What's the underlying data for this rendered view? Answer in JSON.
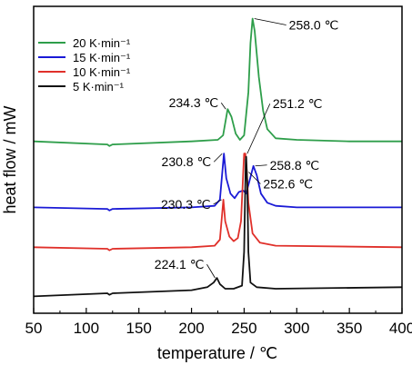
{
  "chart_data": {
    "type": "line",
    "xlabel": "temperature / ℃",
    "ylabel": "heat flow / mW",
    "xlim": [
      50,
      400
    ],
    "x_ticks": [
      "50",
      "100",
      "150",
      "200",
      "250",
      "300",
      "350",
      "400"
    ],
    "y_ticks_shown": false,
    "legend": {
      "placement": "top-left",
      "entries": [
        "20 K·min⁻¹",
        "15 K·min⁻¹",
        "10 K·min⁻¹",
        "5 K·min⁻¹"
      ]
    },
    "series": [
      {
        "name": "20 K·min⁻¹",
        "color": "#2e9e4a",
        "baseline": 0.56,
        "points": [
          [
            50,
            0.56
          ],
          [
            120,
            0.55
          ],
          [
            122,
            0.545
          ],
          [
            125,
            0.55
          ],
          [
            200,
            0.56
          ],
          [
            225,
            0.565
          ],
          [
            230,
            0.58
          ],
          [
            234.3,
            0.665
          ],
          [
            238,
            0.64
          ],
          [
            242,
            0.585
          ],
          [
            246,
            0.565
          ],
          [
            250,
            0.58
          ],
          [
            254,
            0.72
          ],
          [
            256,
            0.88
          ],
          [
            258,
            0.96
          ],
          [
            260,
            0.92
          ],
          [
            264,
            0.77
          ],
          [
            268,
            0.66
          ],
          [
            272,
            0.6
          ],
          [
            280,
            0.57
          ],
          [
            300,
            0.565
          ],
          [
            350,
            0.56
          ],
          [
            400,
            0.56
          ]
        ]
      },
      {
        "name": "15 K·min⁻¹",
        "color": "#1a1ad6",
        "baseline": 0.345,
        "points": [
          [
            50,
            0.345
          ],
          [
            120,
            0.34
          ],
          [
            122,
            0.335
          ],
          [
            125,
            0.34
          ],
          [
            200,
            0.345
          ],
          [
            222,
            0.35
          ],
          [
            227,
            0.37
          ],
          [
            230.8,
            0.52
          ],
          [
            233,
            0.44
          ],
          [
            237,
            0.39
          ],
          [
            241,
            0.375
          ],
          [
            245,
            0.395
          ],
          [
            249,
            0.4
          ],
          [
            252,
            0.39
          ],
          [
            255,
            0.43
          ],
          [
            258.8,
            0.48
          ],
          [
            262,
            0.45
          ],
          [
            266,
            0.39
          ],
          [
            272,
            0.36
          ],
          [
            280,
            0.35
          ],
          [
            300,
            0.345
          ],
          [
            400,
            0.345
          ]
        ]
      },
      {
        "name": "10 K·min⁻¹",
        "color": "#e0302a",
        "baseline": 0.215,
        "points": [
          [
            50,
            0.215
          ],
          [
            120,
            0.21
          ],
          [
            122,
            0.205
          ],
          [
            125,
            0.21
          ],
          [
            200,
            0.215
          ],
          [
            222,
            0.22
          ],
          [
            227,
            0.24
          ],
          [
            230.3,
            0.37
          ],
          [
            232,
            0.3
          ],
          [
            236,
            0.25
          ],
          [
            240,
            0.235
          ],
          [
            244,
            0.245
          ],
          [
            247,
            0.3
          ],
          [
            249,
            0.45
          ],
          [
            250,
            0.52
          ],
          [
            251.2,
            0.52
          ],
          [
            252.6,
            0.46
          ],
          [
            254,
            0.36
          ],
          [
            258,
            0.26
          ],
          [
            265,
            0.23
          ],
          [
            280,
            0.22
          ],
          [
            400,
            0.215
          ]
        ]
      },
      {
        "name": "5 K·min⁻¹",
        "color": "#111111",
        "baseline": 0.06,
        "points": [
          [
            50,
            0.055
          ],
          [
            120,
            0.065
          ],
          [
            122,
            0.06
          ],
          [
            125,
            0.065
          ],
          [
            200,
            0.075
          ],
          [
            215,
            0.085
          ],
          [
            221,
            0.1
          ],
          [
            224.1,
            0.115
          ],
          [
            227,
            0.095
          ],
          [
            232,
            0.08
          ],
          [
            240,
            0.08
          ],
          [
            248,
            0.09
          ],
          [
            250,
            0.2
          ],
          [
            251.5,
            0.5
          ],
          [
            252,
            0.51
          ],
          [
            253,
            0.42
          ],
          [
            254,
            0.2
          ],
          [
            256,
            0.1
          ],
          [
            262,
            0.085
          ],
          [
            280,
            0.08
          ],
          [
            400,
            0.085
          ]
        ]
      }
    ],
    "annotations": [
      {
        "text": "258.0 ℃",
        "series": "20 K·min⁻¹",
        "x": 258.0
      },
      {
        "text": "234.3 ℃",
        "series": "20 K·min⁻¹",
        "x": 234.3
      },
      {
        "text": "251.2 ℃",
        "series": "10 K·min⁻¹",
        "x": 251.2
      },
      {
        "text": "230.8 ℃",
        "series": "15 K·min⁻¹",
        "x": 230.8
      },
      {
        "text": "258.8 ℃",
        "series": "15 K·min⁻¹",
        "x": 258.8
      },
      {
        "text": "230.3 ℃",
        "series": "10 K·min⁻¹",
        "x": 230.3
      },
      {
        "text": "252.6 ℃",
        "series": "10 K·min⁻¹",
        "x": 252.6
      },
      {
        "text": "224.1 ℃",
        "series": "5 K·min⁻¹",
        "x": 224.1
      }
    ]
  }
}
